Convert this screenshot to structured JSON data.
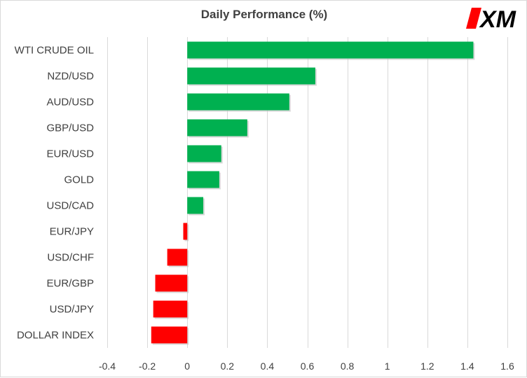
{
  "chart_data": {
    "type": "bar",
    "orientation": "horizontal",
    "title": "Daily Performance  (%)",
    "categories": [
      "WTI CRUDE OIL",
      "NZD/USD",
      "AUD/USD",
      "GBP/USD",
      "EUR/USD",
      "GOLD",
      "USD/CAD",
      "EUR/JPY",
      "USD/CHF",
      "EUR/GBP",
      "USD/JPY",
      "DOLLAR INDEX"
    ],
    "values": [
      1.43,
      0.64,
      0.51,
      0.3,
      0.17,
      0.16,
      0.08,
      -0.02,
      -0.1,
      -0.16,
      -0.17,
      -0.18
    ],
    "xlim": [
      -0.4,
      1.6
    ],
    "xticks": [
      -0.4,
      -0.2,
      0,
      0.2,
      0.4,
      0.6,
      0.8,
      1,
      1.2,
      1.4,
      1.6
    ],
    "xtick_labels": [
      "-0.4",
      "-0.2",
      "0",
      "0.2",
      "0.4",
      "0.6",
      "0.8",
      "1",
      "1.2",
      "1.4",
      "1.6"
    ],
    "grid": "vertical",
    "colors": {
      "positive": "#00b050",
      "negative": "#ff0000",
      "grid": "#d9d9d9",
      "text": "#404040"
    }
  },
  "brand": {
    "logo_text": "XM",
    "logo_color": "#000000",
    "accent": "#ff0000"
  }
}
